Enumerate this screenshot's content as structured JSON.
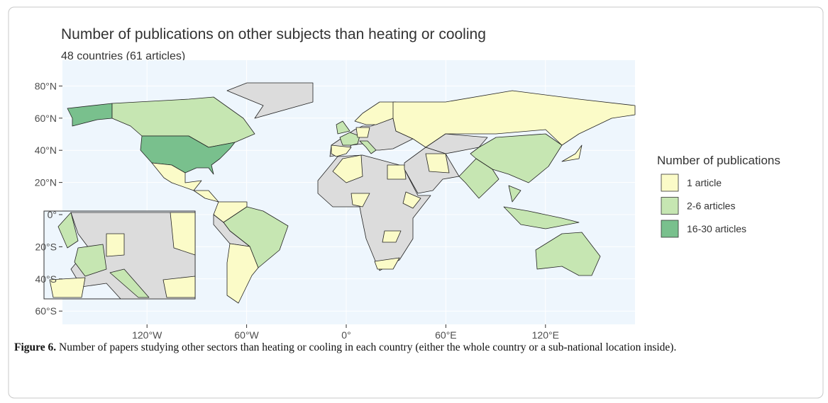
{
  "figure": {
    "title": "Number of publications on other subjects than heating or cooling",
    "subtitle": "48 countries (61 articles)",
    "y_ticks": [
      {
        "value": 80,
        "label": "80°N"
      },
      {
        "value": 60,
        "label": "60°N"
      },
      {
        "value": 40,
        "label": "40°N"
      },
      {
        "value": 20,
        "label": "20°N"
      },
      {
        "value": 0,
        "label": "0°"
      },
      {
        "value": -20,
        "label": "20°S"
      },
      {
        "value": -40,
        "label": "40°S"
      },
      {
        "value": -60,
        "label": "60°S"
      }
    ],
    "x_ticks": [
      {
        "value": -120,
        "label": "120°W"
      },
      {
        "value": -60,
        "label": "60°W"
      },
      {
        "value": 0,
        "label": "0°"
      },
      {
        "value": 60,
        "label": "60°E"
      },
      {
        "value": 120,
        "label": "120°E"
      }
    ],
    "legend": {
      "title": "Number of publications",
      "items": [
        {
          "label": "1 article",
          "color": "#fbfbc8"
        },
        {
          "label": "2-6 articles",
          "color": "#c6e6b2"
        },
        {
          "label": "16-30 articles",
          "color": "#79c08d"
        }
      ]
    }
  },
  "caption": {
    "label": "Figure 6.",
    "text": "Number of papers studying other sectors than heating or cooling in each country (either the whole country or a sub-national location inside)."
  }
}
